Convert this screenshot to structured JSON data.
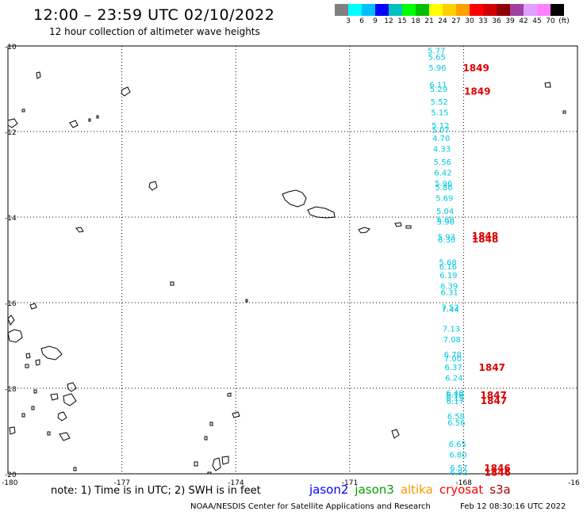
{
  "header": {
    "title": "12:00 – 23:59 UTC 02/10/2022",
    "subtitle": "12 hour collection of altimeter wave heights"
  },
  "color_scale": {
    "labels": [
      "3",
      "6",
      "9",
      "12",
      "15",
      "18",
      "21",
      "24",
      "27",
      "30",
      "33",
      "36",
      "39",
      "42",
      "45",
      "70",
      "(ft)"
    ],
    "colors": [
      "#808080",
      "#00ffff",
      "#00bfff",
      "#0000ff",
      "#00c0c0",
      "#00ff00",
      "#00c000",
      "#ffff00",
      "#ffd000",
      "#ffa000",
      "#ff0000",
      "#d00000",
      "#900000",
      "#a040a0",
      "#e0a0ff",
      "#ff80ff",
      "#000000"
    ]
  },
  "map": {
    "lat_labels": [
      "-10",
      "-12",
      "-14",
      "-16",
      "-18",
      "-20"
    ],
    "lon_labels": [
      "-180",
      "-177",
      "-174",
      "-171",
      "-168",
      "-16"
    ],
    "track_color": "#00c8e0",
    "time_color": "#e00000",
    "track_readings": [
      {
        "text": "5.77",
        "lat": -10.1
      },
      {
        "text": "5.65",
        "lat": -10.25
      },
      {
        "text": "5.96",
        "lat": -10.5
      },
      {
        "text": "6.11",
        "lat": -10.9
      },
      {
        "text": "5.29",
        "lat": -11.0
      },
      {
        "text": "5.52",
        "lat": -11.3
      },
      {
        "text": "5.15",
        "lat": -11.55
      },
      {
        "text": "5.12",
        "lat": -11.85
      },
      {
        "text": "5.07",
        "lat": -11.95
      },
      {
        "text": "4.70",
        "lat": -12.15
      },
      {
        "text": "4.33",
        "lat": -12.4
      },
      {
        "text": "5.56",
        "lat": -12.7
      },
      {
        "text": "6.42",
        "lat": -12.95
      },
      {
        "text": "5.96",
        "lat": -13.2
      },
      {
        "text": "5.86",
        "lat": -13.3
      },
      {
        "text": "5.69",
        "lat": -13.55
      },
      {
        "text": "5.04",
        "lat": -13.85
      },
      {
        "text": "5.88",
        "lat": -14.05
      },
      {
        "text": "5.90",
        "lat": -14.1
      },
      {
        "text": "5.93",
        "lat": -14.45
      },
      {
        "text": "6.30",
        "lat": -14.52
      },
      {
        "text": "5.68",
        "lat": -15.05
      },
      {
        "text": "6.16",
        "lat": -15.15
      },
      {
        "text": "6.19",
        "lat": -15.35
      },
      {
        "text": "6.39",
        "lat": -15.6
      },
      {
        "text": "6.31",
        "lat": -15.75
      },
      {
        "text": "7.52",
        "lat": -16.1
      },
      {
        "text": "7.44",
        "lat": -16.15
      },
      {
        "text": "7.13",
        "lat": -16.6
      },
      {
        "text": "7.08",
        "lat": -16.85
      },
      {
        "text": "6.78",
        "lat": -17.2
      },
      {
        "text": "7.00",
        "lat": -17.3
      },
      {
        "text": "6.37",
        "lat": -17.5
      },
      {
        "text": "6.24",
        "lat": -17.75
      },
      {
        "text": "6.48",
        "lat": -18.1
      },
      {
        "text": "6.18",
        "lat": -18.15
      },
      {
        "text": "6.15",
        "lat": -18.22
      },
      {
        "text": "6.17",
        "lat": -18.3
      },
      {
        "text": "6.58",
        "lat": -18.65
      },
      {
        "text": "6.56",
        "lat": -18.8
      },
      {
        "text": "6.65",
        "lat": -19.3
      },
      {
        "text": "6.80",
        "lat": -19.55
      },
      {
        "text": "6.57",
        "lat": -19.85
      },
      {
        "text": "6.92",
        "lat": -19.95
      }
    ],
    "time_labels": [
      {
        "text": "1849",
        "lat": -10.5
      },
      {
        "text": "1849",
        "lat": -11.05
      },
      {
        "text": "1848",
        "lat": -14.43
      },
      {
        "text": "1848",
        "lat": -14.5
      },
      {
        "text": "1847",
        "lat": -17.5
      },
      {
        "text": "1847",
        "lat": -18.15
      },
      {
        "text": "1847",
        "lat": -18.28
      },
      {
        "text": "1846",
        "lat": -19.85
      },
      {
        "text": "1846",
        "lat": -19.95
      }
    ]
  },
  "footer": {
    "note": "note: 1) Time is in UTC; 2) SWH is in feet",
    "satellites": [
      {
        "name": "jason2",
        "color": "#0000ff"
      },
      {
        "name": "jason3",
        "color": "#00a000"
      },
      {
        "name": "altika",
        "color": "#ff9900"
      },
      {
        "name": "cryosat",
        "color": "#ff0000"
      },
      {
        "name": "s3a",
        "color": "#aa0000"
      }
    ],
    "credit": "NOAA/NESDIS Center for Satellite Applications and Research",
    "timestamp": "Feb 12 08:30:16 UTC 2022"
  }
}
